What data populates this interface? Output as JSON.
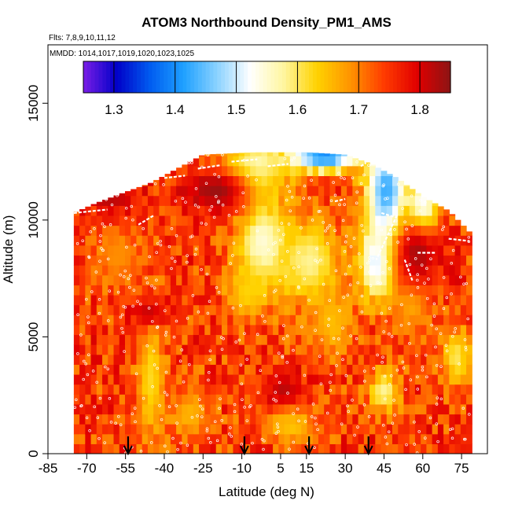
{
  "chart_data": {
    "type": "heatmap",
    "title": "ATOM3 Northbound Density_PM1_AMS",
    "subtitle_flights": "Flts: 7,8,9,10,11,12",
    "subtitle_dates": "MMDD: 1014,1017,1019,1020,1023,1025",
    "xlabel": "Latitude (deg N)",
    "ylabel": "Altitude (m)",
    "xlim": [
      -85,
      85
    ],
    "ylim": [
      0,
      17500
    ],
    "x_ticks": [
      -85,
      -70,
      -55,
      -40,
      -25,
      -10,
      5,
      15,
      30,
      45,
      60,
      75
    ],
    "y_ticks": [
      0,
      5000,
      10000,
      15000
    ],
    "colorbar": {
      "min": 1.25,
      "max": 1.85,
      "ticks": [
        1.3,
        1.4,
        1.5,
        1.6,
        1.7,
        1.8
      ],
      "colors": [
        "#7a1ee6",
        "#0000c8",
        "#005cf0",
        "#1ea0ff",
        "#8ad2ff",
        "#ffffff",
        "#fff6a0",
        "#ffd200",
        "#ff9400",
        "#ff3c00",
        "#e10000",
        "#8c1414"
      ]
    },
    "data_extent": {
      "lat_min": -75,
      "lat_max": 78,
      "alt_max_by_lat": [
        [
          -75,
          10300
        ],
        [
          -67,
          10700
        ],
        [
          -55,
          11200
        ],
        [
          -45,
          11600
        ],
        [
          -35,
          12200
        ],
        [
          -25,
          12800
        ],
        [
          -5,
          12900
        ],
        [
          15,
          12900
        ],
        [
          30,
          12800
        ],
        [
          40,
          12400
        ],
        [
          50,
          11800
        ],
        [
          60,
          11000
        ],
        [
          70,
          10400
        ],
        [
          78,
          9500
        ]
      ]
    },
    "features": [
      {
        "lat": -6,
        "alt": 12200,
        "value": 1.55,
        "lat_w": 14,
        "alt_w": 1400
      },
      {
        "lat": 22,
        "alt": 12800,
        "value": 1.38,
        "lat_w": 14,
        "alt_w": 700
      },
      {
        "lat": 46,
        "alt": 11200,
        "value": 1.42,
        "lat_w": 8,
        "alt_w": 2600
      },
      {
        "lat": 60,
        "alt": 10400,
        "value": 1.47,
        "lat_w": 6,
        "alt_w": 1500
      },
      {
        "lat": 43,
        "alt": 8200,
        "value": 1.48,
        "lat_w": 8,
        "alt_w": 1600
      },
      {
        "lat": -2,
        "alt": 9000,
        "value": 1.54,
        "lat_w": 10,
        "alt_w": 2000
      },
      {
        "lat": 16,
        "alt": 8200,
        "value": 1.58,
        "lat_w": 12,
        "alt_w": 1800
      },
      {
        "lat": -8,
        "alt": 7000,
        "value": 1.63,
        "lat_w": 8,
        "alt_w": 1200
      },
      {
        "lat": -45,
        "alt": 3200,
        "value": 1.62,
        "lat_w": 5,
        "alt_w": 2500
      },
      {
        "lat": 45,
        "alt": 2700,
        "value": 1.58,
        "lat_w": 6,
        "alt_w": 900
      },
      {
        "lat": 73,
        "alt": 4200,
        "value": 1.6,
        "lat_w": 6,
        "alt_w": 1200
      },
      {
        "lat": -30,
        "alt": 1700,
        "value": 1.66,
        "lat_w": 8,
        "alt_w": 1200
      },
      {
        "lat": 9,
        "alt": 1300,
        "value": 1.64,
        "lat_w": 10,
        "alt_w": 800
      },
      {
        "lat": 25,
        "alt": 5600,
        "value": 1.65,
        "lat_w": 8,
        "alt_w": 1500
      },
      {
        "lat": -58,
        "alt": 8500,
        "value": 1.69,
        "lat_w": 10,
        "alt_w": 1400
      },
      {
        "lat": 56,
        "alt": 6500,
        "value": 1.66,
        "lat_w": 8,
        "alt_w": 1400
      },
      {
        "lat": -20,
        "alt": 11300,
        "value": 1.84,
        "lat_w": 14,
        "alt_w": 1000
      },
      {
        "lat": -60,
        "alt": 11000,
        "value": 1.82,
        "lat_w": 10,
        "alt_w": 800
      },
      {
        "lat": 58,
        "alt": 8600,
        "value": 1.83,
        "lat_w": 10,
        "alt_w": 1500
      },
      {
        "lat": 6,
        "alt": 2800,
        "value": 1.82,
        "lat_w": 8,
        "alt_w": 800
      },
      {
        "lat": -46,
        "alt": 6100,
        "value": 1.81,
        "lat_w": 8,
        "alt_w": 700
      }
    ],
    "arrow_latitudes": [
      -54,
      -9,
      16,
      39
    ]
  }
}
